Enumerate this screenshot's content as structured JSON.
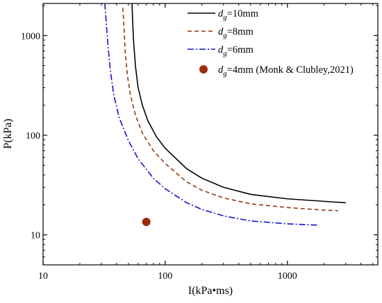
{
  "chart_data": {
    "type": "line",
    "xlabel": "I(kPa•ms)",
    "ylabel": "P(kPa)",
    "xscale": "log",
    "yscale": "log",
    "xlim": [
      10,
      5500
    ],
    "ylim": [
      5,
      2100
    ],
    "x_ticks": [
      {
        "value": 10,
        "label": "10"
      },
      {
        "value": 100,
        "label": "100"
      },
      {
        "value": 1000,
        "label": "1000"
      }
    ],
    "y_ticks": [
      {
        "value": 10,
        "label": "10"
      },
      {
        "value": 100,
        "label": "100"
      },
      {
        "value": 1000,
        "label": "1000"
      }
    ],
    "grid": false,
    "legend_position": "top-right",
    "series": [
      {
        "name_symbol": "d",
        "name_sub": "g",
        "name_rest": "=10mm",
        "style": "solid",
        "color": "#000000",
        "points": [
          [
            53.5,
            2100
          ],
          [
            54,
            1500
          ],
          [
            55,
            900
          ],
          [
            57,
            500
          ],
          [
            60,
            300
          ],
          [
            65,
            200
          ],
          [
            72,
            140
          ],
          [
            85,
            96
          ],
          [
            100,
            74
          ],
          [
            150,
            46
          ],
          [
            200,
            37
          ],
          [
            300,
            30
          ],
          [
            500,
            25.5
          ],
          [
            1000,
            23
          ],
          [
            2000,
            21.7
          ],
          [
            3000,
            21
          ]
        ]
      },
      {
        "name_symbol": "d",
        "name_sub": "g",
        "name_rest": "=8mm",
        "style": "dashed",
        "color": "#8B3A10",
        "points": [
          [
            45,
            1900
          ],
          [
            46,
            1200
          ],
          [
            47,
            700
          ],
          [
            49,
            400
          ],
          [
            52,
            250
          ],
          [
            57,
            160
          ],
          [
            65,
            105
          ],
          [
            80,
            70
          ],
          [
            100,
            52
          ],
          [
            150,
            34
          ],
          [
            200,
            28
          ],
          [
            300,
            23.5
          ],
          [
            500,
            20.5
          ],
          [
            1000,
            18.8
          ],
          [
            2000,
            17.7
          ],
          [
            2600,
            17.5
          ]
        ]
      },
      {
        "name_symbol": "d",
        "name_sub": "g",
        "name_rest": "=6mm",
        "style": "dashdot",
        "color": "#1010D0",
        "points": [
          [
            32,
            2100
          ],
          [
            33,
            1300
          ],
          [
            34,
            800
          ],
          [
            35.5,
            450
          ],
          [
            38,
            250
          ],
          [
            42,
            150
          ],
          [
            50,
            88
          ],
          [
            60,
            58
          ],
          [
            80,
            37
          ],
          [
            100,
            29
          ],
          [
            150,
            21
          ],
          [
            200,
            18
          ],
          [
            300,
            15.5
          ],
          [
            500,
            13.8
          ],
          [
            1000,
            12.9
          ],
          [
            1800,
            12.5
          ]
        ]
      },
      {
        "name_symbol": "d",
        "name_sub": "g",
        "name_rest": "=4mm (Monk & Clubley,2021)",
        "style": "marker",
        "color": "#A02A10",
        "points": [
          [
            70,
            13.5
          ]
        ]
      }
    ]
  }
}
